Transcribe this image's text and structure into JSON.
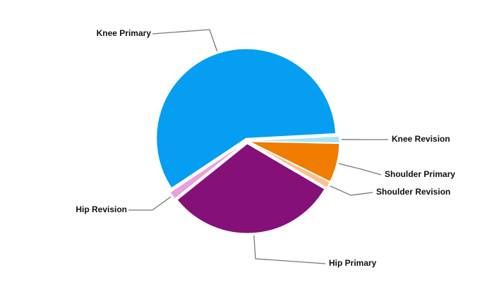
{
  "chart_data": {
    "type": "pie",
    "categories": [
      "Knee Primary",
      "Knee Revision",
      "Shoulder Primary",
      "Shoulder Revision",
      "Hip Primary",
      "Hip Revision"
    ],
    "values": [
      58.5,
      1.2,
      7,
      1.1,
      30.8,
      1.4
    ],
    "colors": [
      "#069ef0",
      "#a8e4f5",
      "#f07c00",
      "#fcc08a",
      "#851078",
      "#e8a0e0"
    ]
  }
}
